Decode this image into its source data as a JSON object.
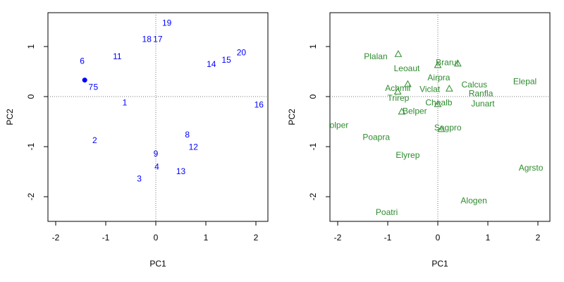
{
  "chart_data": [
    {
      "type": "scatter",
      "xlabel": "PC1",
      "ylabel": "PC2",
      "xlim": [
        -2.0,
        2.2
      ],
      "ylim": [
        -2.5,
        1.6
      ],
      "x_ticks": [
        "-2",
        "-1",
        "0",
        "1",
        "2"
      ],
      "y_ticks": [
        "-2",
        "-1",
        "0",
        "1"
      ],
      "label_color": "#0000ff",
      "points": [
        {
          "label": "1",
          "x": -0.62,
          "y": -0.12
        },
        {
          "label": "2",
          "x": -1.22,
          "y": -0.87
        },
        {
          "label": "3",
          "x": -0.33,
          "y": -1.64
        },
        {
          "label": "4",
          "x": 0.02,
          "y": -1.4
        },
        {
          "label": "5",
          "x": -1.2,
          "y": 0.19
        },
        {
          "label": "6",
          "x": -1.47,
          "y": 0.71
        },
        {
          "label": "7",
          "x": -1.3,
          "y": 0.19
        },
        {
          "label": "8",
          "x": 0.63,
          "y": -0.76
        },
        {
          "label": "9",
          "x": 0.0,
          "y": -1.14
        },
        {
          "label": "11",
          "x": -0.77,
          "y": 0.8
        },
        {
          "label": "12",
          "x": 0.75,
          "y": -1.01
        },
        {
          "label": "13",
          "x": 0.5,
          "y": -1.49
        },
        {
          "label": "14",
          "x": 1.11,
          "y": 0.65
        },
        {
          "label": "15",
          "x": 1.41,
          "y": 0.73
        },
        {
          "label": "16",
          "x": 2.06,
          "y": -0.16
        },
        {
          "label": "17",
          "x": 0.04,
          "y": 1.15
        },
        {
          "label": "18",
          "x": -0.18,
          "y": 1.15
        },
        {
          "label": "19",
          "x": 0.22,
          "y": 1.47
        },
        {
          "label": "20",
          "x": 1.71,
          "y": 0.88
        }
      ],
      "marker_points": [
        {
          "x": -1.42,
          "y": 0.33
        }
      ]
    },
    {
      "type": "scatter",
      "xlabel": "PC1",
      "ylabel": "PC2",
      "xlim": [
        -2.0,
        2.2
      ],
      "ylim": [
        -2.5,
        1.6
      ],
      "x_ticks": [
        "-2",
        "-1",
        "0",
        "1",
        "2"
      ],
      "y_ticks": [
        "-2",
        "-1",
        "0",
        "1"
      ],
      "label_color": "#2e8b2e",
      "points": [
        {
          "label": "Plalan",
          "x": -1.24,
          "y": 0.8
        },
        {
          "label": "Leoaut",
          "x": -0.62,
          "y": 0.56
        },
        {
          "label": "Brarut",
          "x": 0.19,
          "y": 0.68
        },
        {
          "label": "Airpra",
          "x": 0.02,
          "y": 0.38
        },
        {
          "label": "Achmil",
          "x": -0.8,
          "y": 0.17
        },
        {
          "label": "Viclat",
          "x": -0.16,
          "y": 0.15
        },
        {
          "label": "Trirep",
          "x": -0.79,
          "y": -0.03
        },
        {
          "label": "Chealb",
          "x": 0.02,
          "y": -0.12
        },
        {
          "label": "Belper",
          "x": -0.46,
          "y": -0.29
        },
        {
          "label": "Calcus",
          "x": 0.73,
          "y": 0.24
        },
        {
          "label": "Ranfla",
          "x": 0.86,
          "y": 0.06
        },
        {
          "label": "Junart",
          "x": 0.9,
          "y": -0.14
        },
        {
          "label": "Elepal",
          "x": 1.74,
          "y": 0.3
        },
        {
          "label": "Lolper",
          "x": -2.02,
          "y": -0.57
        },
        {
          "label": "Poapra",
          "x": -1.23,
          "y": -0.81
        },
        {
          "label": "Sagpro",
          "x": 0.2,
          "y": -0.62
        },
        {
          "label": "Elyrep",
          "x": -0.6,
          "y": -1.17
        },
        {
          "label": "Agrsto",
          "x": 1.86,
          "y": -1.42
        },
        {
          "label": "Alogen",
          "x": 0.72,
          "y": -2.08
        },
        {
          "label": "Poatri",
          "x": -1.02,
          "y": -2.31
        }
      ],
      "marker_points": [
        {
          "x": -0.79,
          "y": 0.85
        },
        {
          "x": 0.4,
          "y": 0.66
        },
        {
          "x": 0.0,
          "y": 0.63
        },
        {
          "x": -0.6,
          "y": 0.25
        },
        {
          "x": 0.23,
          "y": 0.16
        },
        {
          "x": -0.8,
          "y": 0.1
        },
        {
          "x": -0.72,
          "y": -0.3
        },
        {
          "x": 0.0,
          "y": -0.15
        },
        {
          "x": 0.07,
          "y": -0.65
        }
      ]
    }
  ]
}
